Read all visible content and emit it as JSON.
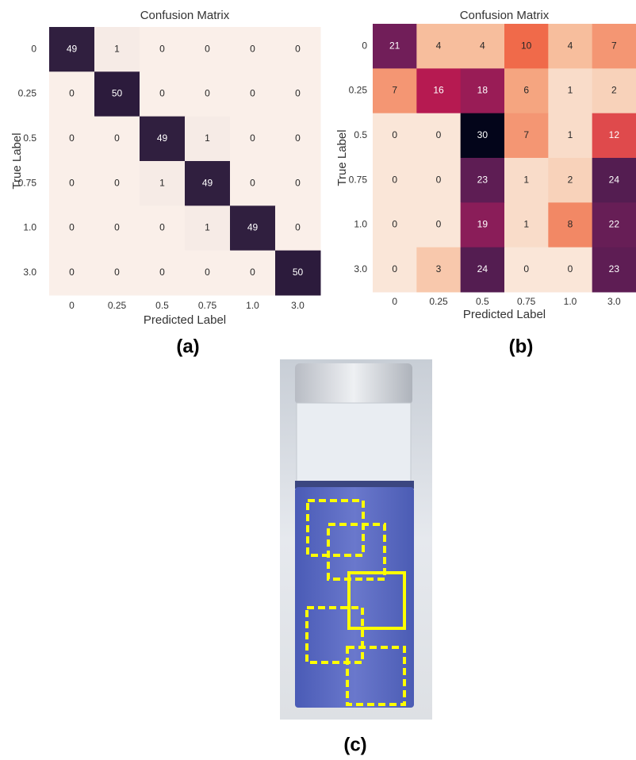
{
  "chart_data": [
    {
      "type": "heatmap",
      "title": "Confusion Matrix",
      "x_label": "Predicted Label",
      "y_label": "True Label",
      "x_categories": [
        "0",
        "0.25",
        "0.5",
        "0.75",
        "1.0",
        "3.0"
      ],
      "y_categories": [
        "0",
        "0.25",
        "0.5",
        "0.75",
        "1.0",
        "3.0"
      ],
      "values": [
        [
          49,
          1,
          0,
          0,
          0,
          0
        ],
        [
          0,
          50,
          0,
          0,
          0,
          0
        ],
        [
          0,
          0,
          49,
          1,
          0,
          0
        ],
        [
          0,
          0,
          1,
          49,
          0,
          0
        ],
        [
          0,
          0,
          0,
          1,
          49,
          0
        ],
        [
          0,
          0,
          0,
          0,
          0,
          50
        ]
      ],
      "colormap": [
        "#faefe9",
        "#2c1b3c"
      ]
    },
    {
      "type": "heatmap",
      "title": "Confusion Matrix",
      "x_label": "Predicted Label",
      "y_label": "True Label",
      "x_categories": [
        "0",
        "0.25",
        "0.5",
        "0.75",
        "1.0",
        "3.0"
      ],
      "y_categories": [
        "0",
        "0.25",
        "0.5",
        "0.75",
        "1.0",
        "3.0"
      ],
      "values": [
        [
          21,
          4,
          4,
          10,
          4,
          7
        ],
        [
          7,
          16,
          18,
          6,
          1,
          2
        ],
        [
          0,
          0,
          30,
          7,
          1,
          12
        ],
        [
          0,
          0,
          23,
          1,
          2,
          24
        ],
        [
          0,
          0,
          19,
          1,
          8,
          22
        ],
        [
          0,
          3,
          24,
          0,
          0,
          23
        ]
      ],
      "colormap": [
        "#fae6d8",
        "#f6b48e",
        "#f06a4a",
        "#c5194f",
        "#7b1e5b",
        "#4a1d4f",
        "#03051a"
      ]
    }
  ],
  "panel_labels": [
    "(a)",
    "(b)",
    "(c)"
  ]
}
